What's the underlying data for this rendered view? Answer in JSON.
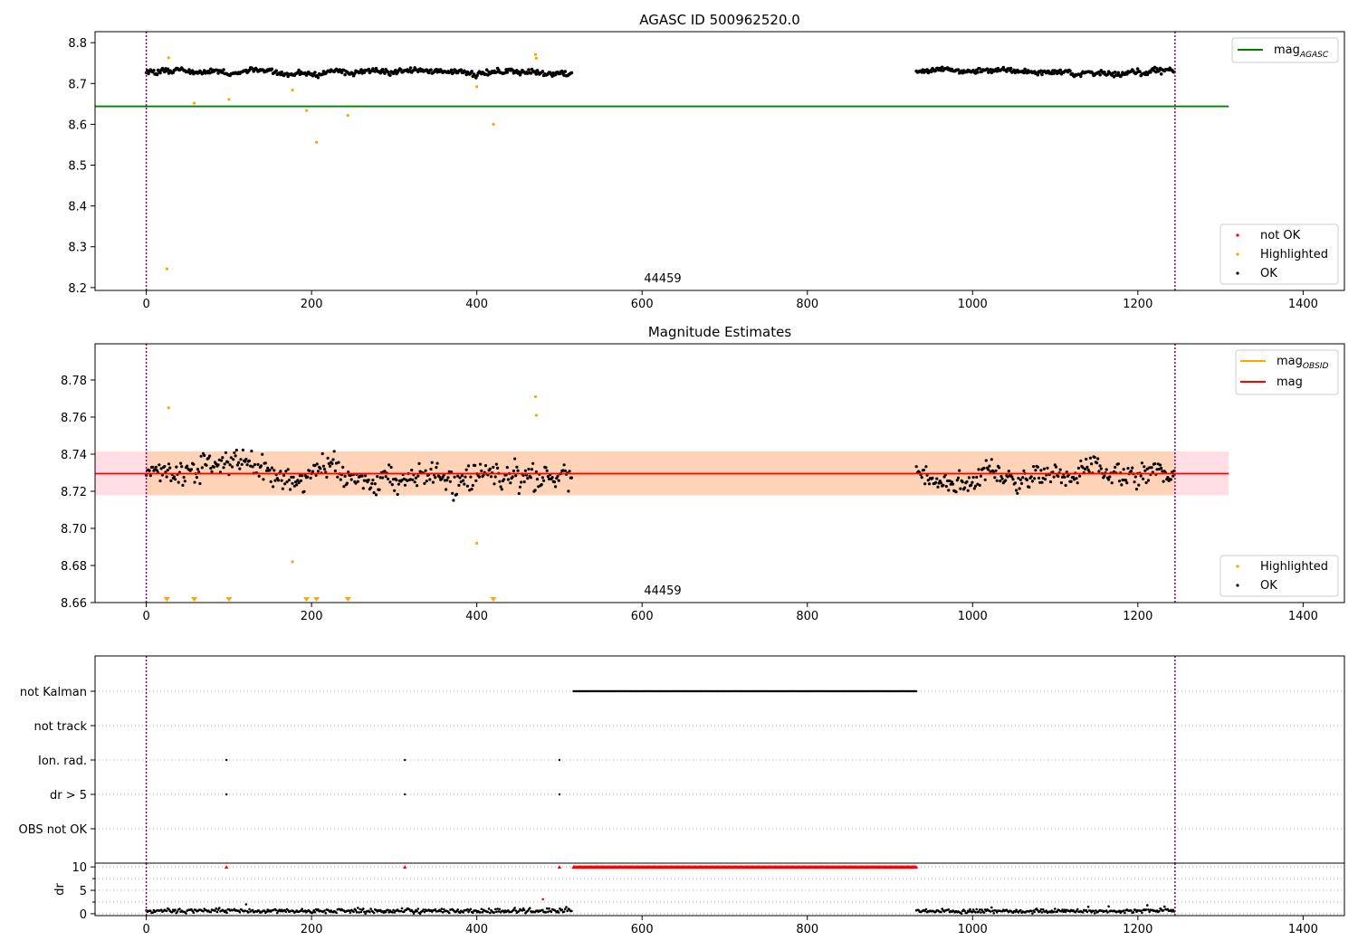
{
  "chart_data": [
    {
      "type": "scatter",
      "title": "AGASC ID 500962520.0",
      "xlabel": "",
      "ylabel": "",
      "xlim": [
        -62,
        1450
      ],
      "ylim": [
        8.193,
        8.827
      ],
      "xticks": [
        "0",
        "200",
        "400",
        "600",
        "800",
        "1000",
        "1200",
        "1400"
      ],
      "yticks": [
        "8.2",
        "8.3",
        "8.4",
        "8.5",
        "8.6",
        "8.7",
        "8.8"
      ],
      "obsid_label": "44459",
      "obsid_boundaries": [
        0,
        1245
      ],
      "mag_agasc": {
        "value": 8.644,
        "x_range": [
          -62,
          1310
        ]
      },
      "ok_segments": [
        {
          "x_range": [
            0,
            515
          ],
          "mean": 8.728,
          "spread": 0.012
        },
        {
          "x_range": [
            932,
            1245
          ],
          "mean": 8.73,
          "spread": 0.012
        }
      ],
      "highlighted_points": [
        [
          25,
          8.246
        ],
        [
          27,
          8.763
        ],
        [
          58,
          8.652
        ],
        [
          100,
          8.661
        ],
        [
          177,
          8.684
        ],
        [
          194,
          8.634
        ],
        [
          206,
          8.556
        ],
        [
          244,
          8.622
        ],
        [
          400,
          8.692
        ],
        [
          420,
          8.6
        ],
        [
          471,
          8.771
        ],
        [
          472,
          8.762
        ]
      ],
      "series": [
        {
          "name": "mag_{AGASC}",
          "color": "#008000"
        },
        {
          "name": "not OK",
          "color": "#ff0000"
        },
        {
          "name": "Highlighted",
          "color": "#ffa500"
        },
        {
          "name": "OK",
          "color": "#000000"
        }
      ],
      "legend": {
        "upper": [
          "mag_{AGASC}"
        ],
        "lower": [
          "not OK",
          "Highlighted",
          "OK"
        ],
        "upper_placement": "top-right",
        "lower_placement": "bottom-right"
      },
      "grid": false
    },
    {
      "type": "scatter",
      "title": "Magnitude Estimates",
      "xlabel": "",
      "ylabel": "",
      "xlim": [
        -62,
        1450
      ],
      "ylim": [
        8.66,
        8.7995
      ],
      "xticks": [
        "0",
        "200",
        "400",
        "600",
        "800",
        "1000",
        "1200",
        "1400"
      ],
      "yticks": [
        "8.66",
        "8.68",
        "8.70",
        "8.72",
        "8.74",
        "8.76",
        "8.78"
      ],
      "obsid_label": "44459",
      "obsid_boundaries": [
        0,
        1245
      ],
      "mag": {
        "value": 8.7295,
        "band": [
          8.7178,
          8.7415
        ],
        "x_range": [
          -62,
          1310
        ]
      },
      "mag_obsid": {
        "value": 8.7295,
        "band": [
          8.7178,
          8.7415
        ],
        "x_range": [
          0,
          1245
        ]
      },
      "ok_segments": [
        {
          "x_range": [
            0,
            515
          ],
          "mean": 8.729,
          "spread": 0.012
        },
        {
          "x_range": [
            932,
            1245
          ],
          "mean": 8.728,
          "spread": 0.011
        }
      ],
      "highlighted_points": [
        [
          27,
          8.765
        ],
        [
          177,
          8.682
        ],
        [
          400,
          8.692
        ],
        [
          471,
          8.771
        ],
        [
          472,
          8.761
        ]
      ],
      "below_range_markers_x": [
        25,
        58,
        100,
        194,
        206,
        244,
        420
      ],
      "series": [
        {
          "name": "mag_{OBSID}",
          "color": "#ffa500"
        },
        {
          "name": "mag",
          "color": "#ff0000"
        },
        {
          "name": "Highlighted",
          "color": "#ffa500"
        },
        {
          "name": "OK",
          "color": "#000000"
        }
      ],
      "legend": {
        "upper": [
          "mag_{OBSID}",
          "mag"
        ],
        "lower": [
          "Highlighted",
          "OK"
        ],
        "upper_placement": "top-right",
        "lower_placement": "bottom-right"
      },
      "grid": false
    },
    {
      "type": "scatter",
      "title": "",
      "xlabel": "",
      "ylabel": "",
      "xlim": [
        -62,
        1450
      ],
      "categories": [
        "not Kalman",
        "not track",
        "Ion. rad.",
        "dr > 5",
        "OBS not OK"
      ],
      "flags": {
        "not Kalman": {
          "x_range": [
            517,
            932
          ]
        },
        "not track": {
          "x_range": null
        },
        "Ion. rad.": {
          "points": [
            97,
            313,
            500
          ]
        },
        "dr > 5": {
          "points": [
            97,
            313,
            500
          ]
        },
        "OBS not OK": {
          "x_range": null
        }
      },
      "obsid_boundaries": [
        0,
        1245
      ],
      "grid": true
    },
    {
      "type": "scatter",
      "title": "",
      "xlabel": "",
      "ylabel": "dr",
      "xlim": [
        -62,
        1450
      ],
      "ylim": [
        -0.4,
        10.8
      ],
      "xticks": [
        "0",
        "200",
        "400",
        "600",
        "800",
        "1000",
        "1200",
        "1400"
      ],
      "yticks": [
        "0",
        "5",
        "10"
      ],
      "clipped_value": 10,
      "clipped_points_x": [
        97,
        313,
        500
      ],
      "clipped_range_x": [
        517,
        932
      ],
      "outlier_points": [
        [
          480,
          3.1
        ]
      ],
      "ok_segments": [
        {
          "x_range": [
            0,
            515
          ],
          "mean": 0.6,
          "spread": 0.4
        },
        {
          "x_range": [
            932,
            1245
          ],
          "mean": 0.6,
          "spread": 0.35
        }
      ],
      "obsid_boundaries": [
        0,
        1245
      ],
      "grid": true
    }
  ]
}
